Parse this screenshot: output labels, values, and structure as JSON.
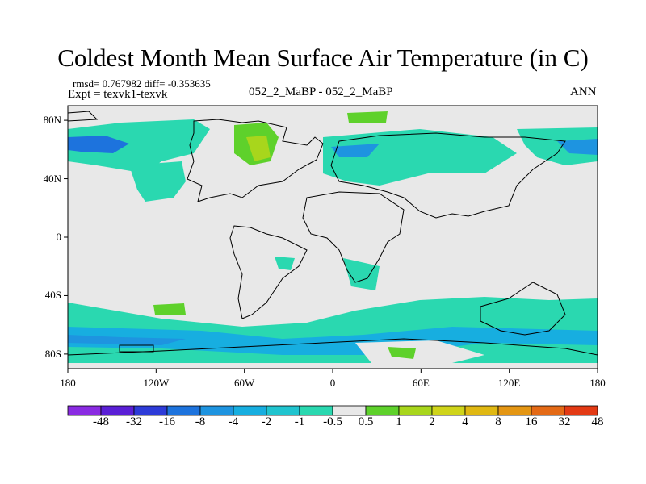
{
  "title": "Coldest Month Mean Surface Air Temperature (in C)",
  "stats": "rmsd= 0.767982 diff= -0.353635",
  "expt": "Expt = texvk1-texvk",
  "center_label": "052_2_MaBP - 052_2_MaBP",
  "season": "ANN",
  "map": {
    "lon_ticks": [
      {
        "value": -180,
        "label": "180"
      },
      {
        "value": -120,
        "label": "120W"
      },
      {
        "value": -60,
        "label": "60W"
      },
      {
        "value": 0,
        "label": "0"
      },
      {
        "value": 60,
        "label": "60E"
      },
      {
        "value": 120,
        "label": "120E"
      },
      {
        "value": 180,
        "label": "180"
      }
    ],
    "lat_ticks": [
      {
        "value": 80,
        "label": "80N"
      },
      {
        "value": 40,
        "label": "40N"
      },
      {
        "value": 0,
        "label": "0"
      },
      {
        "value": -40,
        "label": "40S"
      },
      {
        "value": -80,
        "label": "80S"
      }
    ],
    "background_color": "#e8e8e8"
  },
  "colorbar": {
    "colors": [
      "#8a2be2",
      "#5a1fd6",
      "#2d3bd8",
      "#1d73dd",
      "#1e94e0",
      "#17aee0",
      "#20c4cf",
      "#2ad8b0",
      "#e8e8e8",
      "#5ed12b",
      "#a8d61c",
      "#cfd41a",
      "#e0b812",
      "#e49613",
      "#e46a16",
      "#e33a14"
    ],
    "labels": [
      "-48",
      "-32",
      "-16",
      "-8",
      "-4",
      "-2",
      "-1",
      "-0.5",
      "0.5",
      "1",
      "2",
      "4",
      "8",
      "16",
      "32",
      "48"
    ]
  }
}
